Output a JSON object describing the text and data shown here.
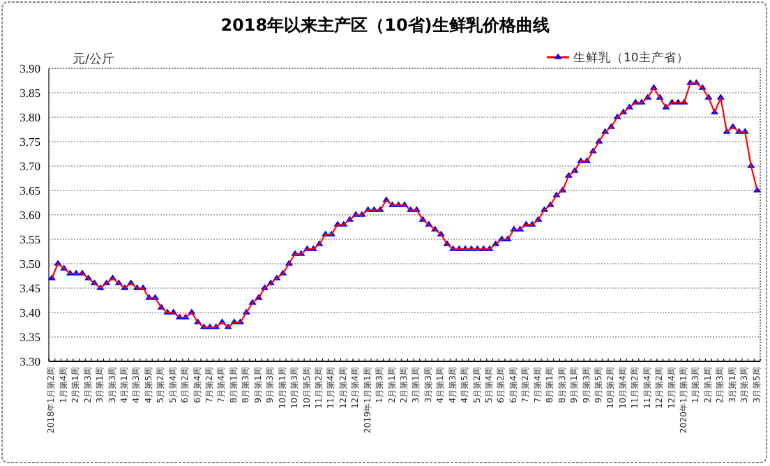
{
  "chart_data": {
    "type": "line",
    "title": "2018年以来主产区（10省)生鲜乳价格曲线",
    "ylabel": "元/公斤",
    "categories": [
      "2018年1月第2周",
      null,
      "1月第4周",
      null,
      "2月第1周",
      null,
      "2月第3周",
      null,
      "3月第1周",
      null,
      "3月第3周",
      null,
      "4月第1周",
      null,
      "4月第3周",
      null,
      "4月第5周",
      null,
      "5月第2周",
      null,
      "5月第4周",
      null,
      "6月第2周",
      null,
      "6月第4周",
      null,
      "7月第2周",
      null,
      "7月第4周",
      null,
      "8月第1周",
      null,
      "8月第3周",
      null,
      "9月第1周",
      null,
      "9月第3周",
      null,
      "10月第1周",
      null,
      "10月第3周",
      null,
      "10月第5周",
      null,
      "11月第2周",
      null,
      "11月第4周",
      null,
      "12月第2周",
      null,
      "12月第4周",
      null,
      "2019年1月第1周",
      null,
      "1月第3周",
      null,
      "2月第1周",
      null,
      "2月第3周",
      null,
      "3月第1周",
      null,
      "3月第3周",
      null,
      "4月第1周",
      null,
      "4月第3周",
      null,
      "4月第5周",
      null,
      "5月第2周",
      null,
      "5月第4周",
      null,
      "6月第2周",
      null,
      "6月第4周",
      null,
      "7月第2周",
      null,
      "7月第4周",
      null,
      "8月第1周",
      null,
      "8月第3周",
      null,
      "9月第1周",
      null,
      "9月第3周",
      null,
      "9月第5周",
      null,
      "10月第2周",
      null,
      "10月第4周",
      null,
      "11月第2周",
      null,
      "11月第4周",
      null,
      "12月第2周",
      null,
      "12月第4周",
      null,
      "2020年1月第1周",
      null,
      "1月第3周",
      null,
      "2月第1周",
      null,
      "2月第3周",
      null,
      "3月第1周",
      null,
      "3月第3周",
      null,
      "3月第5周"
    ],
    "series": [
      {
        "name": "生鲜乳（10主产省）",
        "color": "#ff0000",
        "colors": [
          "#0000ff",
          "#0000ff",
          "#0000ff",
          "#0000ff",
          "#0000ff",
          "#0000ff",
          "#0000ff",
          "#0000ff",
          "#0000ff",
          "#0000ff",
          "#0000ff",
          "#0000ff",
          "#0000ff",
          "#0000ff",
          "#0000ff",
          "#0000ff",
          "#0000ff",
          "#0000ff",
          "#0000ff",
          "#0000ff",
          "#0000ff",
          "#0000ff",
          "#0000ff",
          "#0000ff",
          "#0000ff",
          "#0000ff",
          "#0000ff",
          "#0000ff",
          "#0000ff",
          "#0000ff",
          "#0000ff",
          "#0000ff",
          "#0000ff",
          "#0000ff",
          "#0000ff",
          "#0000ff",
          "#0000ff",
          "#0000ff",
          "#0000ff",
          "#0000ff",
          "#0000ff",
          "#0000ff",
          "#0000ff",
          "#0000ff",
          "#0000ff",
          "#0000ff",
          "#0000ff",
          "#0000ff",
          "#0000ff",
          "#0000ff",
          "#0000ff",
          "#0000ff",
          "#0000ff",
          "#0000ff",
          "#0000ff",
          "#0000ff",
          "#0000ff",
          "#0000ff",
          "#0000ff",
          "#0000ff",
          "#0000ff",
          "#0000ff",
          "#0000ff",
          "#0000ff",
          "#0000ff",
          "#0000ff",
          "#0000ff",
          "#0000ff",
          "#0000ff",
          "#0000ff",
          "#0000ff",
          "#0000ff",
          "#0000ff",
          "#0000ff",
          "#0000ff",
          "#0000ff",
          "#0000ff",
          "#0000ff",
          "#0000ff",
          "#0000ff",
          "#0000ff",
          "#0000ff",
          "#0000ff",
          "#0000ff",
          "#0000ff",
          "#0000ff",
          "#0000ff",
          "#0000ff",
          "#0000ff",
          "#0000ff",
          "#0000ff",
          "#0000ff",
          "#0000ff",
          "#0000ff",
          "#0000ff",
          "#0000ff",
          "#0000ff",
          "#0000ff",
          "#0000ff",
          "#0000ff",
          "#0000ff",
          "#0000ff",
          "#0000ff",
          "#0000ff",
          "#0000ff",
          "#0000ff",
          "#0000ff",
          "#0000ff",
          "#0000ff",
          "#0000ff",
          "#0000ff",
          "#0000ff",
          "#0000ff",
          "#0000ff",
          "#0000ff",
          "#0000ff",
          "#0000ff"
        ],
        "values": [
          3.47,
          3.5,
          3.49,
          3.48,
          3.48,
          3.48,
          3.47,
          3.46,
          3.45,
          3.46,
          3.47,
          3.46,
          3.45,
          3.46,
          3.45,
          3.45,
          3.43,
          3.43,
          3.41,
          3.4,
          3.4,
          3.39,
          3.39,
          3.4,
          3.38,
          3.37,
          3.37,
          3.37,
          3.38,
          3.37,
          3.38,
          3.38,
          3.4,
          3.42,
          3.43,
          3.45,
          3.46,
          3.47,
          3.48,
          3.5,
          3.52,
          3.52,
          3.53,
          3.53,
          3.54,
          3.56,
          3.56,
          3.58,
          3.58,
          3.59,
          3.6,
          3.6,
          3.61,
          3.61,
          3.61,
          3.63,
          3.62,
          3.62,
          3.62,
          3.61,
          3.61,
          3.59,
          3.58,
          3.57,
          3.56,
          3.54,
          3.53,
          3.53,
          3.53,
          3.53,
          3.53,
          3.53,
          3.53,
          3.54,
          3.55,
          3.55,
          3.57,
          3.57,
          3.58,
          3.58,
          3.59,
          3.61,
          3.62,
          3.64,
          3.65,
          3.68,
          3.69,
          3.71,
          3.71,
          3.73,
          3.75,
          3.77,
          3.78,
          3.8,
          3.81,
          3.82,
          3.83,
          3.83,
          3.84,
          3.86,
          3.84,
          3.82,
          3.83,
          3.83,
          3.83,
          3.87,
          3.87,
          3.86,
          3.84,
          3.81,
          3.84,
          3.77,
          3.78,
          3.77,
          3.77,
          3.7,
          3.65
        ]
      }
    ],
    "marker": "triangle",
    "ylim": [
      3.3,
      3.9
    ],
    "yticks": [
      {
        "value": 3.3,
        "label": "3.30"
      },
      {
        "value": 3.35,
        "label": "3.35"
      },
      {
        "value": 3.4,
        "label": "3.40"
      },
      {
        "value": 3.45,
        "label": "3.45"
      },
      {
        "value": 3.5,
        "label": "3.50"
      },
      {
        "value": 3.55,
        "label": "3.55"
      },
      {
        "value": 3.6,
        "label": "3.60"
      },
      {
        "value": 3.65,
        "label": "3.65"
      },
      {
        "value": 3.7,
        "label": "3.70"
      },
      {
        "value": 3.75,
        "label": "3.75"
      },
      {
        "value": 3.8,
        "label": "3.80"
      },
      {
        "value": 3.85,
        "label": "3.85"
      },
      {
        "value": 3.9,
        "label": "3.90"
      }
    ],
    "grid": "y",
    "legend": "top right"
  }
}
